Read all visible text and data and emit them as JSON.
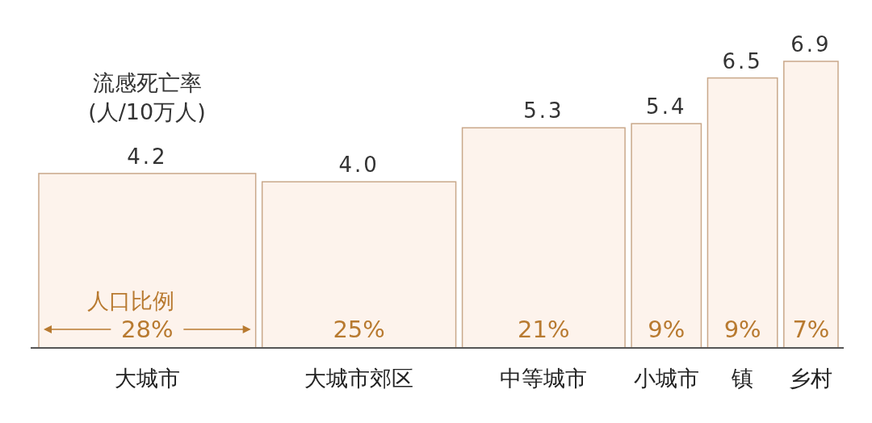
{
  "chart_data": {
    "type": "bar",
    "title": "流感死亡率",
    "subtitle": "(人/10万人)",
    "categories": [
      "大城市",
      "大城市郊区",
      "中等城市",
      "小城市",
      "镇",
      "乡村"
    ],
    "values": [
      4.2,
      4.0,
      5.3,
      5.4,
      6.5,
      6.9
    ],
    "value_labels": [
      "4.2",
      "4.0",
      "5.3",
      "5.4",
      "6.5",
      "6.9"
    ],
    "color": "#fdf3ec",
    "annotations": [
      "人口比例",
      "28%",
      "25%",
      "21%",
      "9%",
      "9%",
      "7%"
    ]
  }
}
